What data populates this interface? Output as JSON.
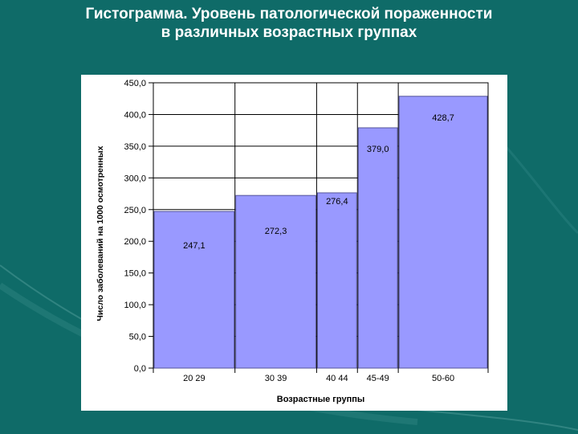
{
  "slide": {
    "title_line1": "Гистограмма. Уровень патологической пораженности",
    "title_line2": "в различных возрастных группах"
  },
  "colors": {
    "background": "#0f6b68",
    "bar_fill": "#9999ff",
    "bar_stroke": "#555599",
    "grid": "#000000"
  },
  "chart_data": {
    "type": "bar",
    "categories": [
      "20-29",
      "30-39",
      "40-44",
      "45-49",
      "50-60"
    ],
    "category_labels": [
      "20 29",
      "30 39",
      "40 44",
      "45-49",
      "50-60"
    ],
    "values": [
      247.1,
      272.3,
      276.4,
      379.0,
      428.7
    ],
    "value_labels": [
      "247,1",
      "272,3",
      "276,4",
      "379,0",
      "428,7"
    ],
    "title": "",
    "xlabel": "Возрастные группы",
    "ylabel": "Число заболеваний на 1000 осмотренных",
    "ylim": [
      0,
      450
    ],
    "yticks": [
      0,
      50,
      100,
      150,
      200,
      250,
      300,
      350,
      400,
      450
    ],
    "ytick_labels": [
      "0,0",
      "50,0",
      "100,0",
      "150,0",
      "200,0",
      "250,0",
      "300,0",
      "350,0",
      "400,0",
      "450,0"
    ],
    "bin_edges": [
      20,
      30,
      40,
      45,
      50,
      61
    ],
    "grid": true,
    "legend": "none"
  }
}
